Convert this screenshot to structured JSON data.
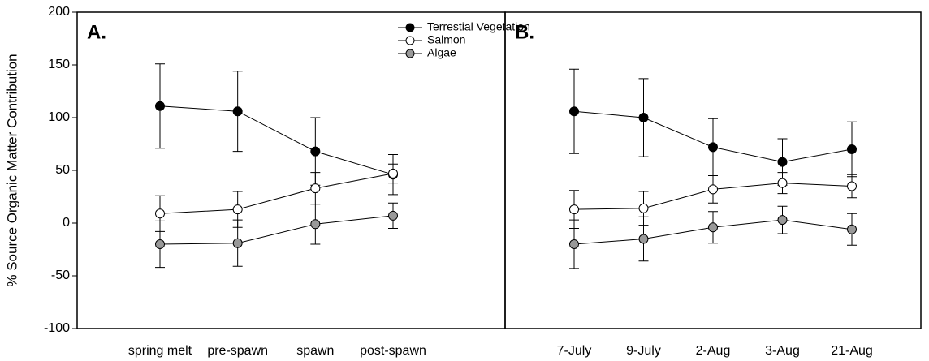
{
  "chart_data": [
    {
      "type": "line",
      "panel_label": "A.",
      "y_label": "% Source Organic Matter Contribution",
      "categories": [
        "spring melt",
        "pre-spawn",
        "spawn",
        "post-spawn"
      ],
      "ylim": [
        -100,
        200
      ],
      "yticks": [
        -100,
        -50,
        0,
        50,
        100,
        150,
        200
      ],
      "legend": "top right",
      "series": [
        {
          "name": "Terrestial Vegetation",
          "color": "#000000",
          "values": [
            111,
            106,
            68,
            46
          ],
          "errors": [
            40,
            38,
            32,
            19
          ]
        },
        {
          "name": "Salmon",
          "color": "#ffffff",
          "values": [
            9,
            13,
            33,
            47
          ],
          "errors": [
            17,
            17,
            15,
            9
          ]
        },
        {
          "name": "Algae",
          "color": "#999999",
          "values": [
            -20,
            -19,
            -1,
            7
          ],
          "errors": [
            22,
            22,
            19,
            12
          ]
        }
      ]
    },
    {
      "type": "line",
      "panel_label": "B.",
      "categories": [
        "7-July",
        "9-July",
        "2-Aug",
        "3-Aug",
        "21-Aug"
      ],
      "ylim": [
        -100,
        200
      ],
      "series": [
        {
          "color": "#000000",
          "values": [
            106,
            100,
            72,
            58,
            70
          ],
          "errors": [
            40,
            37,
            27,
            22,
            26
          ]
        },
        {
          "color": "#ffffff",
          "values": [
            13,
            14,
            32,
            38,
            35
          ],
          "errors": [
            18,
            16,
            13,
            10,
            11
          ]
        },
        {
          "color": "#999999",
          "values": [
            -20,
            -15,
            -4,
            3,
            -6
          ],
          "errors": [
            23,
            21,
            15,
            13,
            15
          ]
        }
      ]
    }
  ]
}
